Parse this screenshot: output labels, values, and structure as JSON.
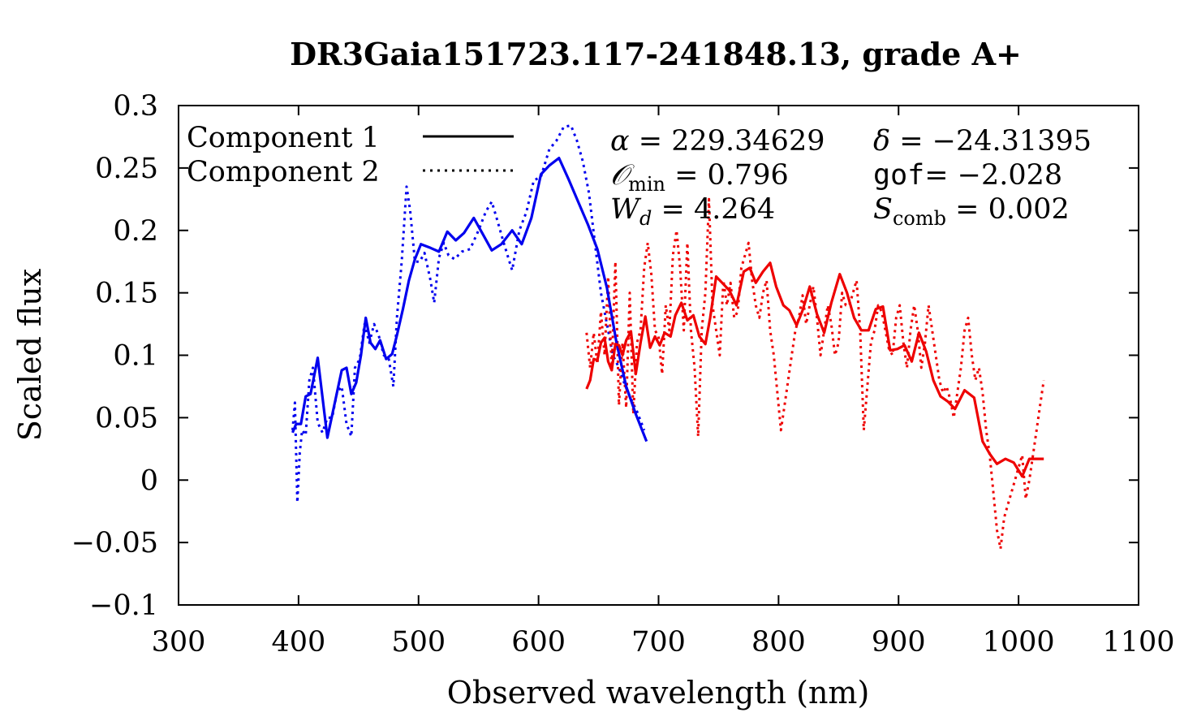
{
  "chart_data": {
    "type": "line",
    "title": "DR3Gaia151723.117-241848.13, grade A+",
    "xlabel": "Observed wavelength (nm)",
    "ylabel": "Scaled flux",
    "xlim": [
      300,
      1100
    ],
    "ylim": [
      -0.1,
      0.3
    ],
    "xticks": [
      "300",
      "400",
      "500",
      "600",
      "700",
      "800",
      "900",
      "1000",
      "1100"
    ],
    "yticks": [
      "0.3",
      "0.25",
      "0.2",
      "0.15",
      "0.1",
      "0.05",
      "0",
      "−0.05",
      "−0.1"
    ],
    "legend": {
      "position": "top-left",
      "entries": [
        {
          "label": "Component 1",
          "style": "solid"
        },
        {
          "label": "Component 2",
          "style": "dotted"
        }
      ]
    },
    "annotations": {
      "alpha_sym": "α",
      "alpha_val": "229.34629",
      "delta_sym": "δ",
      "delta_val": "−24.31395",
      "omin_sym": "𝒪",
      "omin_sub": "min",
      "omin_val": "0.796",
      "gof_sym": "gof",
      "gof_val": "−2.028",
      "wd_sym": "W",
      "wd_sub": "d",
      "wd_val": "4.264",
      "scomb_sym": "S",
      "scomb_sub": "comb",
      "scomb_val": "0.002"
    },
    "series": [
      {
        "name": "Component 1 (blue)",
        "color": "#0000ee",
        "style": "solid",
        "x": [
          395,
          398,
          402,
          406,
          410,
          416,
          424,
          432,
          436,
          440,
          444,
          448,
          452,
          456,
          460,
          464,
          468,
          473,
          478,
          482,
          487,
          492,
          497,
          502,
          510,
          517,
          524,
          531,
          538,
          546,
          553,
          561,
          569,
          578,
          586,
          594,
          602,
          609,
          617,
          625,
          633,
          641,
          649,
          657,
          665,
          673,
          681,
          690
        ],
        "y": [
          0.038,
          0.045,
          0.045,
          0.067,
          0.069,
          0.098,
          0.034,
          0.07,
          0.088,
          0.09,
          0.069,
          0.078,
          0.1,
          0.13,
          0.11,
          0.105,
          0.112,
          0.097,
          0.101,
          0.116,
          0.137,
          0.16,
          0.177,
          0.189,
          0.186,
          0.183,
          0.199,
          0.192,
          0.198,
          0.21,
          0.198,
          0.184,
          0.189,
          0.2,
          0.189,
          0.21,
          0.245,
          0.252,
          0.258,
          0.241,
          0.223,
          0.205,
          0.185,
          0.154,
          0.11,
          0.075,
          0.053,
          0.031
        ]
      },
      {
        "name": "Component 2 (blue)",
        "color": "#0000ee",
        "style": "dotted",
        "x": [
          395,
          397,
          399,
          401,
          403,
          406,
          409,
          412,
          416,
          420,
          424,
          428,
          432,
          436,
          440,
          444,
          447,
          451,
          455,
          459,
          463,
          467,
          471,
          475,
          479,
          482,
          486,
          490,
          493,
          497,
          501,
          505,
          510,
          513,
          517,
          521,
          525,
          530,
          536,
          543,
          550,
          556,
          561,
          566,
          571,
          578,
          584,
          590,
          596,
          602,
          609,
          615,
          621,
          627,
          632,
          637,
          642,
          647,
          652,
          657,
          662,
          667,
          672,
          677,
          682,
          688
        ],
        "y": [
          0.04,
          0.062,
          -0.018,
          0.022,
          0.04,
          0.036,
          0.08,
          0.09,
          0.046,
          0.038,
          0.05,
          0.05,
          0.07,
          0.075,
          0.045,
          0.035,
          0.09,
          0.097,
          0.125,
          0.11,
          0.125,
          0.115,
          0.1,
          0.098,
          0.075,
          0.13,
          0.175,
          0.235,
          0.216,
          0.175,
          0.175,
          0.182,
          0.16,
          0.142,
          0.178,
          0.19,
          0.18,
          0.177,
          0.183,
          0.185,
          0.2,
          0.215,
          0.223,
          0.207,
          0.19,
          0.168,
          0.2,
          0.215,
          0.24,
          0.243,
          0.265,
          0.272,
          0.283,
          0.284,
          0.272,
          0.255,
          0.23,
          0.19,
          0.15,
          0.125,
          0.1,
          0.09,
          0.076,
          0.065,
          0.055,
          0.04
        ]
      },
      {
        "name": "Component 1 (red)",
        "color": "#ee0000",
        "style": "solid",
        "x": [
          640,
          643,
          646,
          649,
          652,
          655,
          658,
          661,
          664,
          667,
          670,
          673,
          677,
          681,
          685,
          689,
          693,
          697,
          701,
          705,
          710,
          714,
          719,
          724,
          729,
          734,
          739,
          743,
          748,
          753,
          759,
          765,
          771,
          776,
          781,
          787,
          793,
          798,
          804,
          809,
          815,
          820,
          826,
          832,
          838,
          844,
          851,
          857,
          863,
          869,
          875,
          881,
          887,
          893,
          899,
          905,
          911,
          917,
          923,
          929,
          935,
          941,
          947,
          955,
          963,
          970,
          976,
          982,
          989,
          996,
          1003,
          1009,
          1015,
          1021
        ],
        "y": [
          0.073,
          0.08,
          0.097,
          0.096,
          0.11,
          0.114,
          0.095,
          0.088,
          0.109,
          0.108,
          0.1,
          0.112,
          0.119,
          0.085,
          0.11,
          0.131,
          0.106,
          0.115,
          0.108,
          0.118,
          0.115,
          0.132,
          0.142,
          0.128,
          0.132,
          0.115,
          0.109,
          0.13,
          0.163,
          0.158,
          0.152,
          0.14,
          0.167,
          0.17,
          0.158,
          0.167,
          0.174,
          0.155,
          0.14,
          0.136,
          0.124,
          0.136,
          0.155,
          0.133,
          0.118,
          0.142,
          0.165,
          0.15,
          0.13,
          0.12,
          0.12,
          0.137,
          0.139,
          0.104,
          0.105,
          0.108,
          0.095,
          0.118,
          0.103,
          0.08,
          0.067,
          0.063,
          0.057,
          0.072,
          0.066,
          0.031,
          0.021,
          0.013,
          0.017,
          0.014,
          0.003,
          0.017,
          0.017,
          0.017
        ]
      },
      {
        "name": "Component 2 (red)",
        "color": "#ee0000",
        "style": "dotted",
        "x": [
          640,
          643,
          646,
          649,
          652,
          655,
          658,
          661,
          664,
          667,
          670,
          673,
          676,
          679,
          682,
          685,
          688,
          691,
          694,
          697,
          700,
          703,
          706,
          709,
          712,
          715,
          718,
          721,
          724,
          727,
          730,
          733,
          736,
          739,
          742,
          745,
          748,
          751,
          754,
          757,
          760,
          763,
          766,
          769,
          772,
          775,
          778,
          781,
          784,
          787,
          790,
          793,
          796,
          799,
          802,
          805,
          808,
          811,
          814,
          817,
          820,
          823,
          826,
          829,
          832,
          835,
          838,
          841,
          844,
          847,
          850,
          853,
          856,
          859,
          862,
          865,
          868,
          871,
          874,
          877,
          880,
          883,
          886,
          889,
          892,
          895,
          898,
          901,
          904,
          907,
          910,
          913,
          916,
          919,
          922,
          925,
          928,
          931,
          934,
          937,
          940,
          943,
          946,
          949,
          952,
          955,
          958,
          961,
          964,
          967,
          970,
          973,
          976,
          979,
          982,
          985,
          988,
          991,
          994,
          997,
          1000,
          1003,
          1006,
          1009,
          1012,
          1015,
          1018,
          1021
        ],
        "y": [
          0.118,
          0.09,
          0.118,
          0.093,
          0.135,
          0.1,
          0.163,
          0.088,
          0.175,
          0.06,
          0.11,
          0.058,
          0.15,
          0.053,
          0.11,
          0.12,
          0.17,
          0.19,
          0.165,
          0.12,
          0.115,
          0.085,
          0.14,
          0.12,
          0.18,
          0.2,
          0.17,
          0.12,
          0.19,
          0.12,
          0.09,
          0.035,
          0.12,
          0.15,
          0.225,
          0.14,
          0.12,
          0.1,
          0.16,
          0.14,
          0.158,
          0.13,
          0.135,
          0.17,
          0.18,
          0.19,
          0.16,
          0.14,
          0.13,
          0.15,
          0.16,
          0.12,
          0.1,
          0.07,
          0.04,
          0.06,
          0.08,
          0.1,
          0.12,
          0.13,
          0.148,
          0.125,
          0.14,
          0.155,
          0.13,
          0.1,
          0.12,
          0.14,
          0.125,
          0.1,
          0.11,
          0.15,
          0.14,
          0.14,
          0.15,
          0.16,
          0.12,
          0.04,
          0.075,
          0.11,
          0.12,
          0.14,
          0.135,
          0.12,
          0.105,
          0.1,
          0.13,
          0.14,
          0.11,
          0.09,
          0.12,
          0.14,
          0.12,
          0.09,
          0.11,
          0.14,
          0.12,
          0.1,
          0.08,
          0.07,
          0.075,
          0.065,
          0.05,
          0.07,
          0.09,
          0.12,
          0.13,
          0.1,
          0.08,
          0.09,
          0.07,
          0.04,
          0.02,
          -0.01,
          -0.04,
          -0.055,
          -0.03,
          -0.02,
          -0.01,
          0.0,
          0.01,
          0.02,
          -0.015,
          0.0,
          0.02,
          0.04,
          0.06,
          0.08
        ]
      }
    ]
  }
}
